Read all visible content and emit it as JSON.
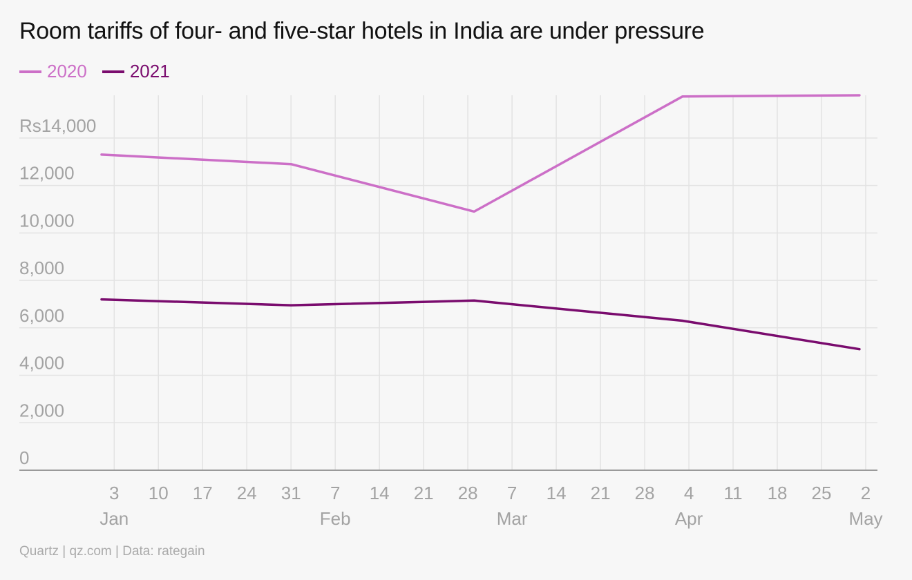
{
  "title": "Room tariffs of four- and five-star hotels in India are under pressure",
  "source": "Quartz | qz.com | Data: rategain",
  "chart_data": {
    "type": "line",
    "title": "Room tariffs of four- and five-star hotels in India are under pressure",
    "xlabel": "",
    "ylabel": "",
    "ylim": [
      0,
      15800
    ],
    "x_domain": [
      "2021-01-01",
      "2021-05-02"
    ],
    "y_ticks": [
      0,
      2000,
      4000,
      6000,
      8000,
      10000,
      12000,
      14000
    ],
    "y_tick_labels": [
      "0",
      "2,000",
      "4,000",
      "6,000",
      "8,000",
      "10,000",
      "12,000",
      "Rs14,000"
    ],
    "x_ticks": [
      {
        "date": "2021-01-03",
        "label": "3",
        "month": "Jan"
      },
      {
        "date": "2021-01-10",
        "label": "10",
        "month": ""
      },
      {
        "date": "2021-01-17",
        "label": "17",
        "month": ""
      },
      {
        "date": "2021-01-24",
        "label": "24",
        "month": ""
      },
      {
        "date": "2021-01-31",
        "label": "31",
        "month": ""
      },
      {
        "date": "2021-02-07",
        "label": "7",
        "month": "Feb"
      },
      {
        "date": "2021-02-14",
        "label": "14",
        "month": ""
      },
      {
        "date": "2021-02-21",
        "label": "21",
        "month": ""
      },
      {
        "date": "2021-02-28",
        "label": "28",
        "month": ""
      },
      {
        "date": "2021-03-07",
        "label": "7",
        "month": "Mar"
      },
      {
        "date": "2021-03-14",
        "label": "14",
        "month": ""
      },
      {
        "date": "2021-03-21",
        "label": "21",
        "month": ""
      },
      {
        "date": "2021-03-28",
        "label": "28",
        "month": ""
      },
      {
        "date": "2021-04-04",
        "label": "4",
        "month": "Apr"
      },
      {
        "date": "2021-04-11",
        "label": "11",
        "month": ""
      },
      {
        "date": "2021-04-18",
        "label": "18",
        "month": ""
      },
      {
        "date": "2021-04-25",
        "label": "25",
        "month": ""
      },
      {
        "date": "2021-05-02",
        "label": "2",
        "month": "May"
      }
    ],
    "grid": true,
    "legend": "top-left",
    "series": [
      {
        "name": "2020",
        "color": "#cc6fc7",
        "points": [
          {
            "x": "2021-01-01",
            "y": 13300
          },
          {
            "x": "2021-01-31",
            "y": 12900
          },
          {
            "x": "2021-03-01",
            "y": 10900
          },
          {
            "x": "2021-04-03",
            "y": 15750
          },
          {
            "x": "2021-05-01",
            "y": 15800
          }
        ]
      },
      {
        "name": "2021",
        "color": "#7a0c6e",
        "points": [
          {
            "x": "2021-01-01",
            "y": 7200
          },
          {
            "x": "2021-01-31",
            "y": 6950
          },
          {
            "x": "2021-03-01",
            "y": 7150
          },
          {
            "x": "2021-04-03",
            "y": 6300
          },
          {
            "x": "2021-05-01",
            "y": 5100
          }
        ]
      }
    ]
  }
}
